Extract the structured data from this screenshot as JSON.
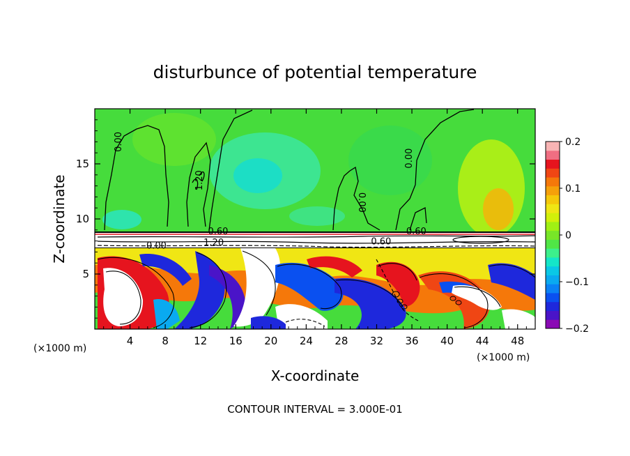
{
  "chart_data": {
    "type": "heatmap",
    "title": "disturbunce of potential temperature",
    "xlabel": "X-coordinate",
    "ylabel": "Z-coordinate",
    "x_unit": "(×1000 m)",
    "z_unit": "(×1000 m)",
    "xlim": [
      0,
      50
    ],
    "ylim": [
      0,
      20
    ],
    "x_ticks": [
      4,
      8,
      12,
      16,
      20,
      24,
      28,
      32,
      36,
      40,
      44,
      48
    ],
    "y_ticks": [
      5,
      10,
      15
    ],
    "footer": "CONTOUR INTERVAL = 3.000E-01",
    "colorbar": {
      "min": -0.2,
      "max": 0.2,
      "tick_values": [
        0.2,
        0.1,
        0,
        -0.1,
        -0.2
      ],
      "tick_labels": [
        "0.2",
        "0.1",
        "0",
        "−0.1",
        "−0.2"
      ],
      "colors": [
        "#8a0ab4",
        "#4a14c8",
        "#1e28dc",
        "#0a50f0",
        "#0a82f5",
        "#0aaaf0",
        "#0ac8e6",
        "#14e6c8",
        "#3cf08c",
        "#50e646",
        "#78e628",
        "#a0f014",
        "#d2f00a",
        "#f0e614",
        "#f5c80a",
        "#f5a00a",
        "#f5780a",
        "#f04614",
        "#e6141e",
        "#f06e82",
        "#f8b4b4"
      ]
    },
    "contour_labels": [
      {
        "text": "0.00",
        "x": 3.0,
        "z": 17.0,
        "rot": -90
      },
      {
        "text": "1.20",
        "x": 12.2,
        "z": 13.5,
        "rot": -90
      },
      {
        "text": "0.00",
        "x": 30.0,
        "z": 11.5,
        "rot": 90
      },
      {
        "text": "0.00",
        "x": 36.0,
        "z": 15.5,
        "rot": -90
      },
      {
        "text": "0.60",
        "x": 14.0,
        "z": 8.6,
        "rot": 0
      },
      {
        "text": "0.60",
        "x": 36.5,
        "z": 8.6,
        "rot": 0
      },
      {
        "text": "0.60",
        "x": 32.5,
        "z": 7.7,
        "rot": 0
      },
      {
        "text": "0.00",
        "x": 7.0,
        "z": 7.3,
        "rot": 0
      },
      {
        "text": "1.20",
        "x": 13.5,
        "z": 7.6,
        "rot": 0
      }
    ]
  }
}
